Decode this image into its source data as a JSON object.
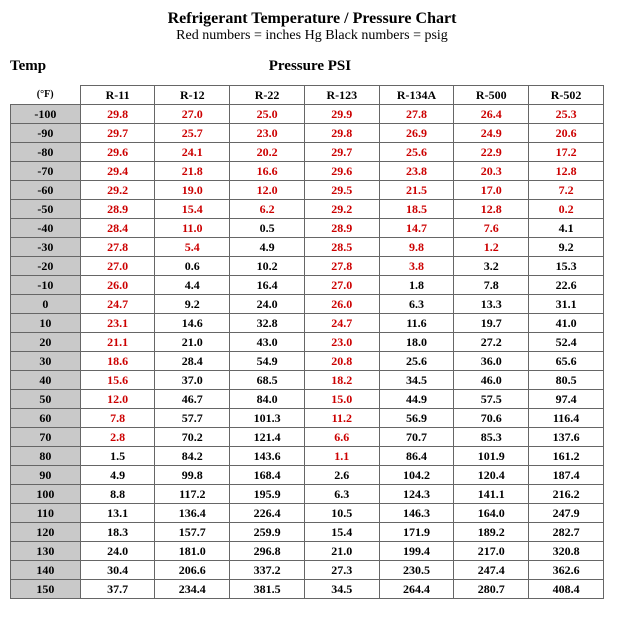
{
  "title": "Refrigerant Temperature / Pressure Chart",
  "subtitle": "Red numbers = inches Hg  Black numbers = psig",
  "axis_temp_label": "Temp",
  "axis_psi_label": "Pressure PSI",
  "unit_label": "(°F)",
  "columns": [
    "R-11",
    "R-12",
    "R-22",
    "R-123",
    "R-134A",
    "R-500",
    "R-502"
  ],
  "temps": [
    -100,
    -90,
    -80,
    -70,
    -60,
    -50,
    -40,
    -30,
    -20,
    -10,
    0,
    10,
    20,
    30,
    40,
    50,
    60,
    70,
    80,
    90,
    100,
    110,
    120,
    130,
    140,
    150
  ],
  "colors": {
    "red": "#cc0000",
    "black": "#000000",
    "tempcol_bg": "#c9c9c9",
    "cell_bg": "#ffffff",
    "border": "#666666"
  },
  "font": {
    "family": "Times New Roman",
    "title_size_pt": 16,
    "sub_size_pt": 14,
    "cell_size_pt": 12
  },
  "rows": [
    [
      {
        "v": "29.8",
        "c": "r"
      },
      {
        "v": "27.0",
        "c": "r"
      },
      {
        "v": "25.0",
        "c": "r"
      },
      {
        "v": "29.9",
        "c": "r"
      },
      {
        "v": "27.8",
        "c": "r"
      },
      {
        "v": "26.4",
        "c": "r"
      },
      {
        "v": "25.3",
        "c": "r"
      }
    ],
    [
      {
        "v": "29.7",
        "c": "r"
      },
      {
        "v": "25.7",
        "c": "r"
      },
      {
        "v": "23.0",
        "c": "r"
      },
      {
        "v": "29.8",
        "c": "r"
      },
      {
        "v": "26.9",
        "c": "r"
      },
      {
        "v": "24.9",
        "c": "r"
      },
      {
        "v": "20.6",
        "c": "r"
      }
    ],
    [
      {
        "v": "29.6",
        "c": "r"
      },
      {
        "v": "24.1",
        "c": "r"
      },
      {
        "v": "20.2",
        "c": "r"
      },
      {
        "v": "29.7",
        "c": "r"
      },
      {
        "v": "25.6",
        "c": "r"
      },
      {
        "v": "22.9",
        "c": "r"
      },
      {
        "v": "17.2",
        "c": "r"
      }
    ],
    [
      {
        "v": "29.4",
        "c": "r"
      },
      {
        "v": "21.8",
        "c": "r"
      },
      {
        "v": "16.6",
        "c": "r"
      },
      {
        "v": "29.6",
        "c": "r"
      },
      {
        "v": "23.8",
        "c": "r"
      },
      {
        "v": "20.3",
        "c": "r"
      },
      {
        "v": "12.8",
        "c": "r"
      }
    ],
    [
      {
        "v": "29.2",
        "c": "r"
      },
      {
        "v": "19.0",
        "c": "r"
      },
      {
        "v": "12.0",
        "c": "r"
      },
      {
        "v": "29.5",
        "c": "r"
      },
      {
        "v": "21.5",
        "c": "r"
      },
      {
        "v": "17.0",
        "c": "r"
      },
      {
        "v": "7.2",
        "c": "r"
      }
    ],
    [
      {
        "v": "28.9",
        "c": "r"
      },
      {
        "v": "15.4",
        "c": "r"
      },
      {
        "v": "6.2",
        "c": "r"
      },
      {
        "v": "29.2",
        "c": "r"
      },
      {
        "v": "18.5",
        "c": "r"
      },
      {
        "v": "12.8",
        "c": "r"
      },
      {
        "v": "0.2",
        "c": "r"
      }
    ],
    [
      {
        "v": "28.4",
        "c": "r"
      },
      {
        "v": "11.0",
        "c": "r"
      },
      {
        "v": "0.5",
        "c": "b"
      },
      {
        "v": "28.9",
        "c": "r"
      },
      {
        "v": "14.7",
        "c": "r"
      },
      {
        "v": "7.6",
        "c": "r"
      },
      {
        "v": "4.1",
        "c": "b"
      }
    ],
    [
      {
        "v": "27.8",
        "c": "r"
      },
      {
        "v": "5.4",
        "c": "r"
      },
      {
        "v": "4.9",
        "c": "b"
      },
      {
        "v": "28.5",
        "c": "r"
      },
      {
        "v": "9.8",
        "c": "r"
      },
      {
        "v": "1.2",
        "c": "r"
      },
      {
        "v": "9.2",
        "c": "b"
      }
    ],
    [
      {
        "v": "27.0",
        "c": "r"
      },
      {
        "v": "0.6",
        "c": "b"
      },
      {
        "v": "10.2",
        "c": "b"
      },
      {
        "v": "27.8",
        "c": "r"
      },
      {
        "v": "3.8",
        "c": "r"
      },
      {
        "v": "3.2",
        "c": "b"
      },
      {
        "v": "15.3",
        "c": "b"
      }
    ],
    [
      {
        "v": "26.0",
        "c": "r"
      },
      {
        "v": "4.4",
        "c": "b"
      },
      {
        "v": "16.4",
        "c": "b"
      },
      {
        "v": "27.0",
        "c": "r"
      },
      {
        "v": "1.8",
        "c": "b"
      },
      {
        "v": "7.8",
        "c": "b"
      },
      {
        "v": "22.6",
        "c": "b"
      }
    ],
    [
      {
        "v": "24.7",
        "c": "r"
      },
      {
        "v": "9.2",
        "c": "b"
      },
      {
        "v": "24.0",
        "c": "b"
      },
      {
        "v": "26.0",
        "c": "r"
      },
      {
        "v": "6.3",
        "c": "b"
      },
      {
        "v": "13.3",
        "c": "b"
      },
      {
        "v": "31.1",
        "c": "b"
      }
    ],
    [
      {
        "v": "23.1",
        "c": "r"
      },
      {
        "v": "14.6",
        "c": "b"
      },
      {
        "v": "32.8",
        "c": "b"
      },
      {
        "v": "24.7",
        "c": "r"
      },
      {
        "v": "11.6",
        "c": "b"
      },
      {
        "v": "19.7",
        "c": "b"
      },
      {
        "v": "41.0",
        "c": "b"
      }
    ],
    [
      {
        "v": "21.1",
        "c": "r"
      },
      {
        "v": "21.0",
        "c": "b"
      },
      {
        "v": "43.0",
        "c": "b"
      },
      {
        "v": "23.0",
        "c": "r"
      },
      {
        "v": "18.0",
        "c": "b"
      },
      {
        "v": "27.2",
        "c": "b"
      },
      {
        "v": "52.4",
        "c": "b"
      }
    ],
    [
      {
        "v": "18.6",
        "c": "r"
      },
      {
        "v": "28.4",
        "c": "b"
      },
      {
        "v": "54.9",
        "c": "b"
      },
      {
        "v": "20.8",
        "c": "r"
      },
      {
        "v": "25.6",
        "c": "b"
      },
      {
        "v": "36.0",
        "c": "b"
      },
      {
        "v": "65.6",
        "c": "b"
      }
    ],
    [
      {
        "v": "15.6",
        "c": "r"
      },
      {
        "v": "37.0",
        "c": "b"
      },
      {
        "v": "68.5",
        "c": "b"
      },
      {
        "v": "18.2",
        "c": "r"
      },
      {
        "v": "34.5",
        "c": "b"
      },
      {
        "v": "46.0",
        "c": "b"
      },
      {
        "v": "80.5",
        "c": "b"
      }
    ],
    [
      {
        "v": "12.0",
        "c": "r"
      },
      {
        "v": "46.7",
        "c": "b"
      },
      {
        "v": "84.0",
        "c": "b"
      },
      {
        "v": "15.0",
        "c": "r"
      },
      {
        "v": "44.9",
        "c": "b"
      },
      {
        "v": "57.5",
        "c": "b"
      },
      {
        "v": "97.4",
        "c": "b"
      }
    ],
    [
      {
        "v": "7.8",
        "c": "r"
      },
      {
        "v": "57.7",
        "c": "b"
      },
      {
        "v": "101.3",
        "c": "b"
      },
      {
        "v": "11.2",
        "c": "r"
      },
      {
        "v": "56.9",
        "c": "b"
      },
      {
        "v": "70.6",
        "c": "b"
      },
      {
        "v": "116.4",
        "c": "b"
      }
    ],
    [
      {
        "v": "2.8",
        "c": "r"
      },
      {
        "v": "70.2",
        "c": "b"
      },
      {
        "v": "121.4",
        "c": "b"
      },
      {
        "v": "6.6",
        "c": "r"
      },
      {
        "v": "70.7",
        "c": "b"
      },
      {
        "v": "85.3",
        "c": "b"
      },
      {
        "v": "137.6",
        "c": "b"
      }
    ],
    [
      {
        "v": "1.5",
        "c": "b"
      },
      {
        "v": "84.2",
        "c": "b"
      },
      {
        "v": "143.6",
        "c": "b"
      },
      {
        "v": "1.1",
        "c": "r"
      },
      {
        "v": "86.4",
        "c": "b"
      },
      {
        "v": "101.9",
        "c": "b"
      },
      {
        "v": "161.2",
        "c": "b"
      }
    ],
    [
      {
        "v": "4.9",
        "c": "b"
      },
      {
        "v": "99.8",
        "c": "b"
      },
      {
        "v": "168.4",
        "c": "b"
      },
      {
        "v": "2.6",
        "c": "b"
      },
      {
        "v": "104.2",
        "c": "b"
      },
      {
        "v": "120.4",
        "c": "b"
      },
      {
        "v": "187.4",
        "c": "b"
      }
    ],
    [
      {
        "v": "8.8",
        "c": "b"
      },
      {
        "v": "117.2",
        "c": "b"
      },
      {
        "v": "195.9",
        "c": "b"
      },
      {
        "v": "6.3",
        "c": "b"
      },
      {
        "v": "124.3",
        "c": "b"
      },
      {
        "v": "141.1",
        "c": "b"
      },
      {
        "v": "216.2",
        "c": "b"
      }
    ],
    [
      {
        "v": "13.1",
        "c": "b"
      },
      {
        "v": "136.4",
        "c": "b"
      },
      {
        "v": "226.4",
        "c": "b"
      },
      {
        "v": "10.5",
        "c": "b"
      },
      {
        "v": "146.3",
        "c": "b"
      },
      {
        "v": "164.0",
        "c": "b"
      },
      {
        "v": "247.9",
        "c": "b"
      }
    ],
    [
      {
        "v": "18.3",
        "c": "b"
      },
      {
        "v": "157.7",
        "c": "b"
      },
      {
        "v": "259.9",
        "c": "b"
      },
      {
        "v": "15.4",
        "c": "b"
      },
      {
        "v": "171.9",
        "c": "b"
      },
      {
        "v": "189.2",
        "c": "b"
      },
      {
        "v": "282.7",
        "c": "b"
      }
    ],
    [
      {
        "v": "24.0",
        "c": "b"
      },
      {
        "v": "181.0",
        "c": "b"
      },
      {
        "v": "296.8",
        "c": "b"
      },
      {
        "v": "21.0",
        "c": "b"
      },
      {
        "v": "199.4",
        "c": "b"
      },
      {
        "v": "217.0",
        "c": "b"
      },
      {
        "v": "320.8",
        "c": "b"
      }
    ],
    [
      {
        "v": "30.4",
        "c": "b"
      },
      {
        "v": "206.6",
        "c": "b"
      },
      {
        "v": "337.2",
        "c": "b"
      },
      {
        "v": "27.3",
        "c": "b"
      },
      {
        "v": "230.5",
        "c": "b"
      },
      {
        "v": "247.4",
        "c": "b"
      },
      {
        "v": "362.6",
        "c": "b"
      }
    ],
    [
      {
        "v": "37.7",
        "c": "b"
      },
      {
        "v": "234.4",
        "c": "b"
      },
      {
        "v": "381.5",
        "c": "b"
      },
      {
        "v": "34.5",
        "c": "b"
      },
      {
        "v": "264.4",
        "c": "b"
      },
      {
        "v": "280.7",
        "c": "b"
      },
      {
        "v": "408.4",
        "c": "b"
      }
    ]
  ]
}
